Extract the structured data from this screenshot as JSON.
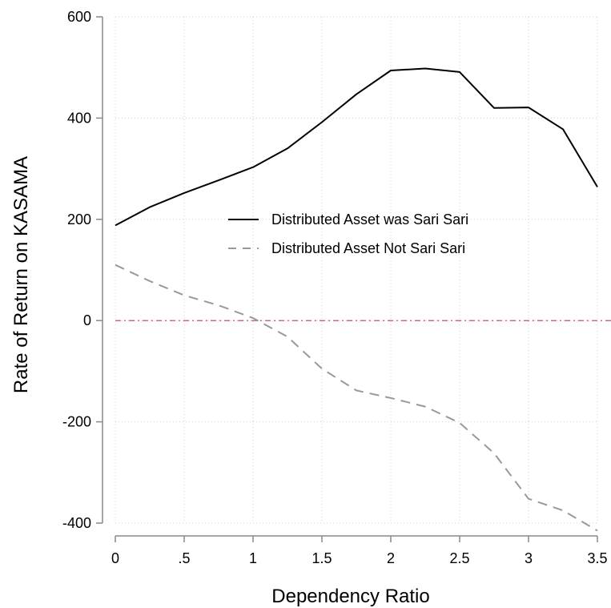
{
  "chart_data": {
    "type": "line",
    "xlabel": "Dependency Ratio",
    "ylabel": "Rate of Return on KASAMA",
    "xlim": [
      0,
      3.5
    ],
    "ylim": [
      -400,
      600
    ],
    "xticks": [
      0,
      0.5,
      1,
      1.5,
      2,
      2.5,
      3,
      3.5
    ],
    "xtick_labels": [
      "0",
      ".5",
      "1",
      "1.5",
      "2",
      "2.5",
      "3",
      "3.5"
    ],
    "yticks": [
      -400,
      -200,
      0,
      200,
      400,
      600
    ],
    "ytick_labels": [
      "-400",
      "-200",
      "0",
      "200",
      "400",
      "600"
    ],
    "grid": true,
    "legend_position": "center",
    "reference_line": {
      "y": 0,
      "color": "#cc6699",
      "style": "dashed"
    },
    "x": [
      0,
      0.25,
      0.5,
      0.75,
      1,
      1.25,
      1.5,
      1.75,
      2,
      2.25,
      2.5,
      2.75,
      3,
      3.25,
      3.5
    ],
    "series": [
      {
        "name": "Distributed Asset was Sari Sari",
        "color": "#000000",
        "style": "solid",
        "values": [
          188,
          224,
          252,
          277,
          303,
          340,
          392,
          447,
          494,
          498,
          491,
          420,
          421,
          378,
          264
        ]
      },
      {
        "name": "Distributed Asset Not Sari Sari",
        "color": "#999999",
        "style": "dashed",
        "values": [
          110,
          78,
          50,
          30,
          5,
          -32,
          -95,
          -138,
          -153,
          -170,
          -202,
          -262,
          -352,
          -375,
          -415
        ]
      }
    ]
  }
}
